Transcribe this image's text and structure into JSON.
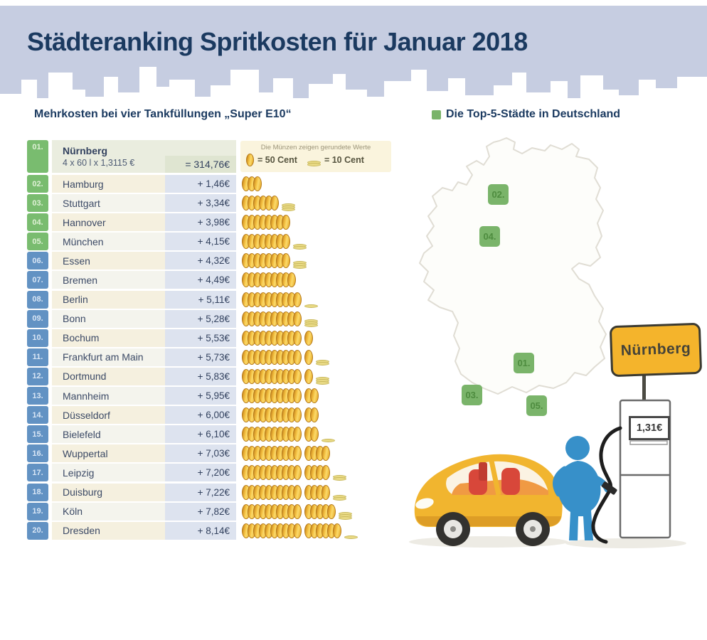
{
  "header": {
    "title": "Städteranking Spritkosten für Januar 2018"
  },
  "left": {
    "subtitle": "Mehrkosten bei vier Tankfüllungen „Super E10“",
    "coin_legend": {
      "note": "Die Münzen zeigen gerundete Werte",
      "coin50_label": "= 50 Cent",
      "coin10_label": "= 10 Cent"
    },
    "ranking": [
      {
        "rank": "01.",
        "city": "Nürnberg",
        "detail": "4 x 60 l x 1,3115 €",
        "value_display": "= 314,76€"
      },
      {
        "rank": "02.",
        "city": "Hamburg",
        "value_display": "+ 1,46€",
        "value": 1.46
      },
      {
        "rank": "03.",
        "city": "Stuttgart",
        "value_display": "+ 3,34€",
        "value": 3.34
      },
      {
        "rank": "04.",
        "city": "Hannover",
        "value_display": "+ 3,98€",
        "value": 3.98
      },
      {
        "rank": "05.",
        "city": "München",
        "value_display": "+ 4,15€",
        "value": 4.15
      },
      {
        "rank": "06.",
        "city": "Essen",
        "value_display": "+ 4,32€",
        "value": 4.32
      },
      {
        "rank": "07.",
        "city": "Bremen",
        "value_display": "+ 4,49€",
        "value": 4.49
      },
      {
        "rank": "08.",
        "city": "Berlin",
        "value_display": "+ 5,11€",
        "value": 5.11
      },
      {
        "rank": "09.",
        "city": "Bonn",
        "value_display": "+ 5,28€",
        "value": 5.28
      },
      {
        "rank": "10.",
        "city": "Bochum",
        "value_display": "+ 5,53€",
        "value": 5.53
      },
      {
        "rank": "11.",
        "city": "Frankfurt am Main",
        "value_display": "+ 5,73€",
        "value": 5.73
      },
      {
        "rank": "12.",
        "city": "Dortmund",
        "value_display": "+ 5,83€",
        "value": 5.83
      },
      {
        "rank": "13.",
        "city": "Mannheim",
        "value_display": "+ 5,95€",
        "value": 5.95
      },
      {
        "rank": "14.",
        "city": "Düsseldorf",
        "value_display": "+ 6,00€",
        "value": 6.0
      },
      {
        "rank": "15.",
        "city": "Bielefeld",
        "value_display": "+ 6,10€",
        "value": 6.1
      },
      {
        "rank": "16.",
        "city": "Wuppertal",
        "value_display": "+ 7,03€",
        "value": 7.03
      },
      {
        "rank": "17.",
        "city": "Leipzig",
        "value_display": "+ 7,20€",
        "value": 7.2
      },
      {
        "rank": "18.",
        "city": "Duisburg",
        "value_display": "+ 7,22€",
        "value": 7.22
      },
      {
        "rank": "19.",
        "city": "Köln",
        "value_display": "+ 7,82€",
        "value": 7.82
      },
      {
        "rank": "20.",
        "city": "Dresden",
        "value_display": "+ 8,14€",
        "value": 8.14
      }
    ]
  },
  "map": {
    "legend_label": "Die Top-5-Städte in Deutschland",
    "markers": [
      {
        "label": "01.",
        "city": "Nürnberg"
      },
      {
        "label": "02.",
        "city": "Hamburg"
      },
      {
        "label": "03.",
        "city": "Stuttgart"
      },
      {
        "label": "04.",
        "city": "Hannover"
      },
      {
        "label": "05.",
        "city": "München"
      }
    ],
    "sign_text": "Nürnberg",
    "pump_price": "1,31€"
  },
  "chart_data": {
    "type": "bar",
    "title": "Städteranking Spritkosten für Januar 2018",
    "subtitle": "Mehrkosten bei vier Tankfüllungen „Super E10“",
    "baseline": {
      "city": "Nürnberg",
      "calculation": "4 x 60 l x 1,3115 €",
      "total_display": "= 314,76€",
      "total_value_eur": 314.76,
      "price_per_liter_display": "1,31€"
    },
    "categories": [
      "Hamburg",
      "Stuttgart",
      "Hannover",
      "München",
      "Essen",
      "Bremen",
      "Berlin",
      "Bonn",
      "Bochum",
      "Frankfurt am Main",
      "Dortmund",
      "Mannheim",
      "Düsseldorf",
      "Bielefeld",
      "Wuppertal",
      "Leipzig",
      "Duisburg",
      "Köln",
      "Dresden"
    ],
    "values": [
      1.46,
      3.34,
      3.98,
      4.15,
      4.32,
      4.49,
      5.11,
      5.28,
      5.53,
      5.73,
      5.83,
      5.95,
      6.0,
      6.1,
      7.03,
      7.2,
      7.22,
      7.82,
      8.14
    ],
    "unit": "EUR Mehrkosten gegenüber Nürnberg",
    "pictogram": {
      "coin_stack_value_eur": 0.5,
      "flat_coin_value_eur": 0.1,
      "note": "Die Münzen zeigen gerundete Werte"
    },
    "top5_cities": [
      "Nürnberg",
      "Hamburg",
      "Stuttgart",
      "Hannover",
      "München"
    ]
  },
  "colors": {
    "header_bg": "#c6cde1",
    "title": "#1b3a60",
    "rank_green": "#79bc6f",
    "rank_blue": "#6292c3",
    "row_cream": "#f5f0df",
    "row_pale": "#f4f4ed",
    "row1_bg": "#eaeddf",
    "row1_value_bg": "#dfe5d1",
    "value_cell_bg": "#dde3ef",
    "coin_gold": "#f2bb35",
    "coin_flat": "#e9da85",
    "marker_green": "#7ab46a",
    "sign_yellow": "#f4b42c",
    "person_blue": "#3790c9",
    "car_yellow": "#f1b52f"
  }
}
